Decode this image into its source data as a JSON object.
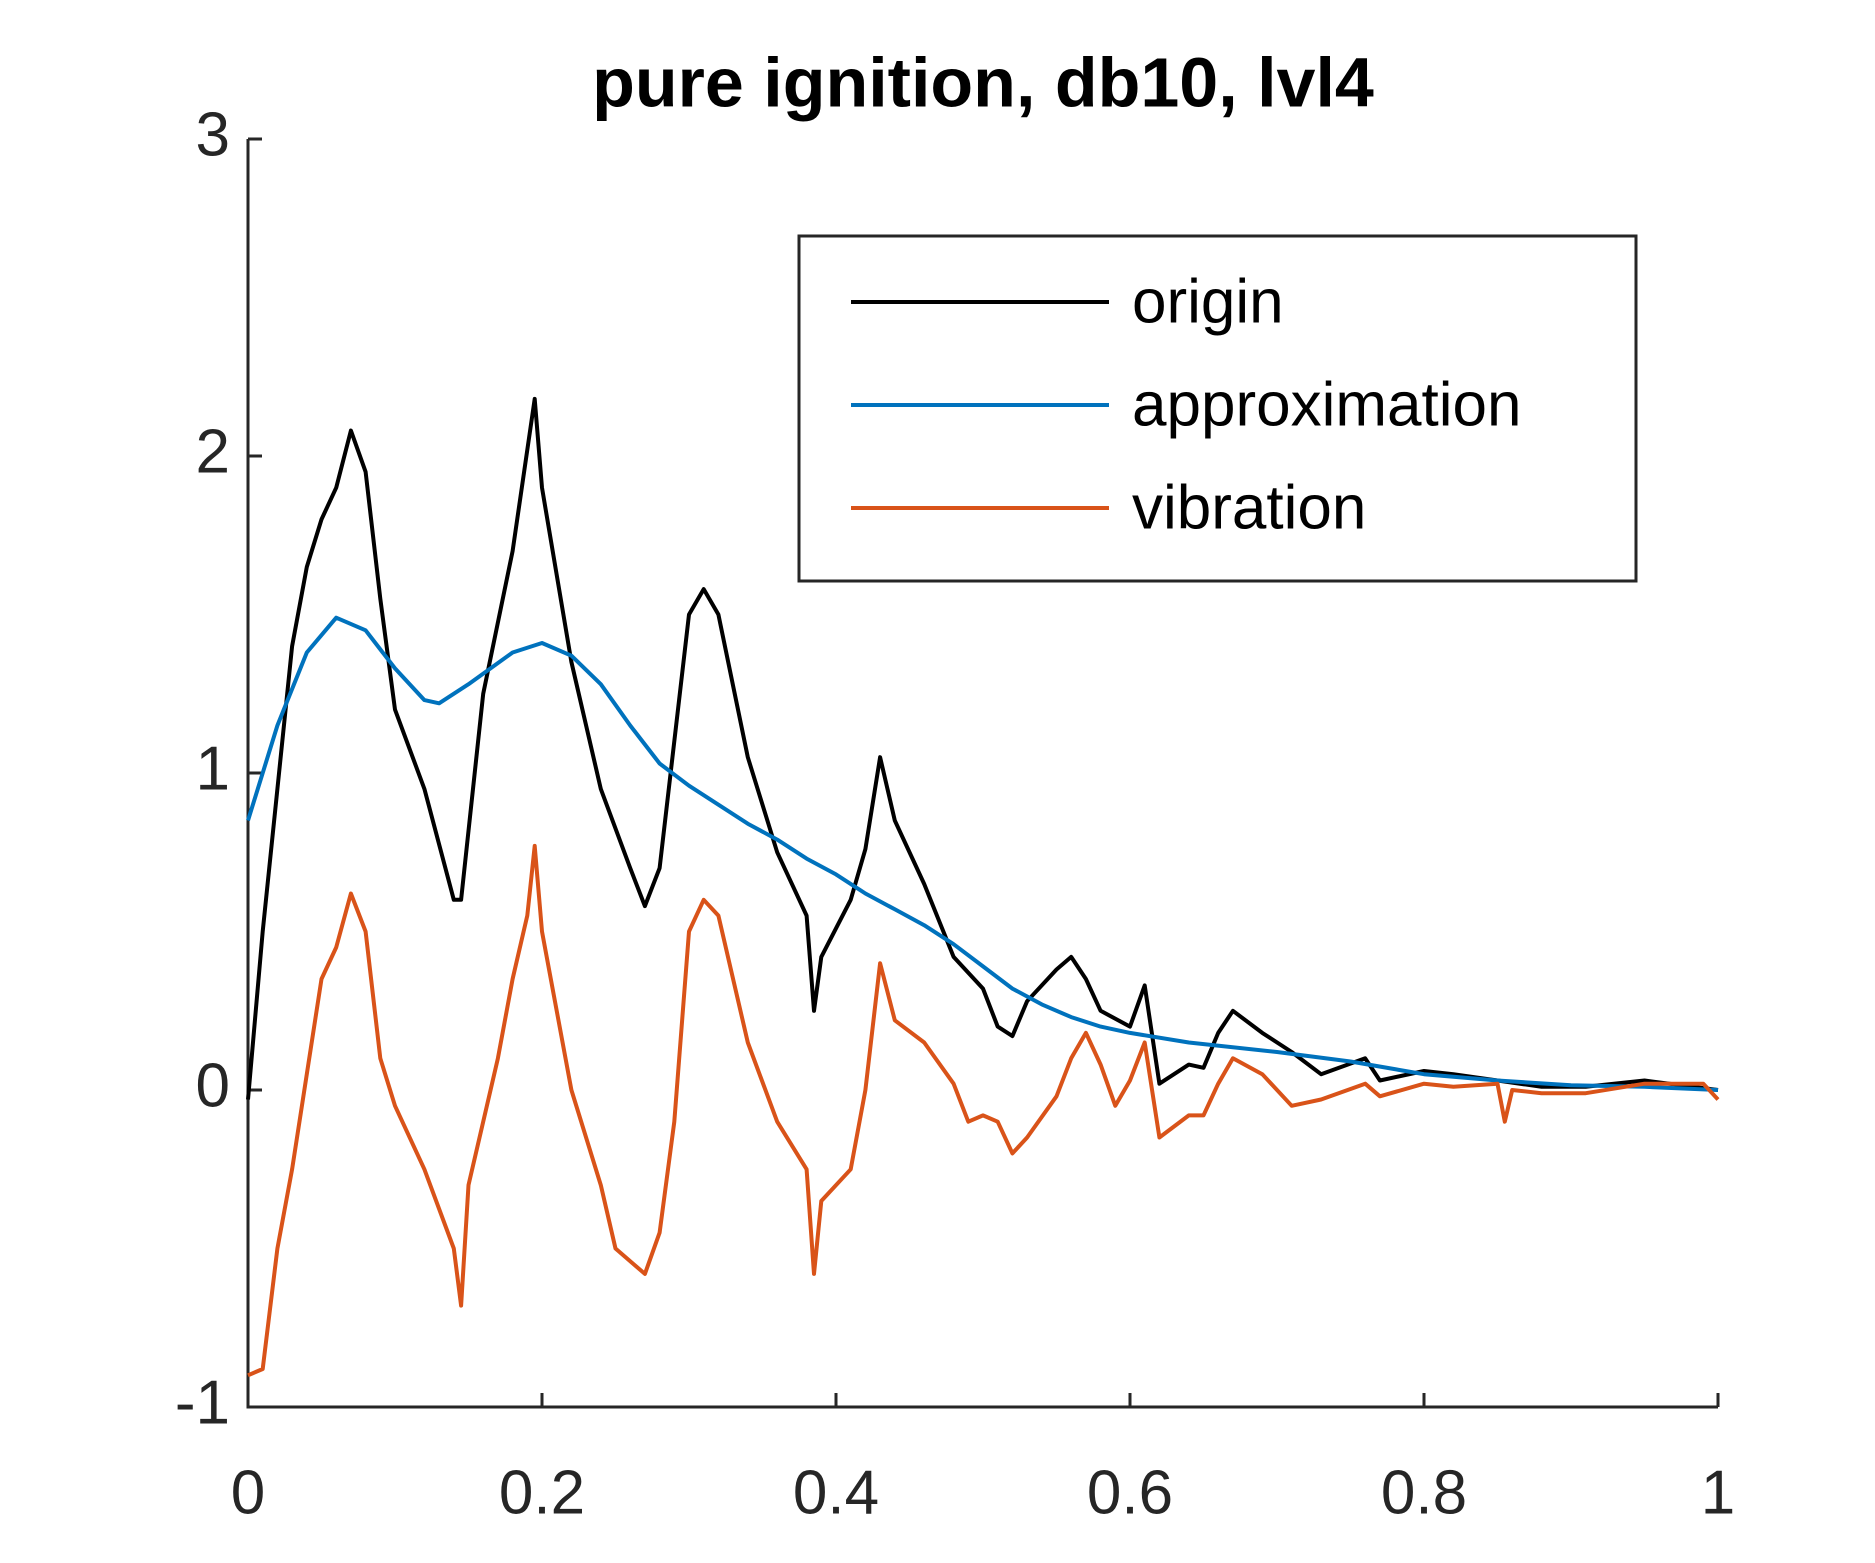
{
  "chart_data": {
    "type": "line",
    "title": "pure ignition, db10, lvl4",
    "xlim": [
      0,
      1
    ],
    "ylim": [
      -1,
      3
    ],
    "xticks": [
      0,
      0.2,
      0.4,
      0.6,
      0.8,
      1
    ],
    "yticks": [
      -1,
      0,
      1,
      2,
      3
    ],
    "legend": "upper-right",
    "series": [
      {
        "name": "origin",
        "color": "#000000",
        "x": [
          0,
          0.01,
          0.02,
          0.03,
          0.04,
          0.05,
          0.06,
          0.07,
          0.08,
          0.09,
          0.1,
          0.12,
          0.14,
          0.145,
          0.16,
          0.18,
          0.195,
          0.2,
          0.22,
          0.24,
          0.26,
          0.27,
          0.28,
          0.3,
          0.31,
          0.32,
          0.34,
          0.36,
          0.38,
          0.385,
          0.39,
          0.41,
          0.42,
          0.43,
          0.44,
          0.46,
          0.48,
          0.5,
          0.51,
          0.52,
          0.53,
          0.55,
          0.56,
          0.57,
          0.58,
          0.6,
          0.61,
          0.62,
          0.64,
          0.65,
          0.66,
          0.67,
          0.69,
          0.71,
          0.73,
          0.76,
          0.77,
          0.8,
          0.82,
          0.85,
          0.88,
          0.91,
          0.95,
          1
        ],
        "values": [
          -0.03,
          0.5,
          0.95,
          1.4,
          1.65,
          1.8,
          1.9,
          2.08,
          1.95,
          1.55,
          1.2,
          0.95,
          0.6,
          0.6,
          1.25,
          1.7,
          2.18,
          1.9,
          1.35,
          0.95,
          0.7,
          0.58,
          0.7,
          1.5,
          1.58,
          1.5,
          1.05,
          0.75,
          0.55,
          0.25,
          0.42,
          0.6,
          0.76,
          1.05,
          0.85,
          0.65,
          0.42,
          0.32,
          0.2,
          0.17,
          0.28,
          0.38,
          0.42,
          0.35,
          0.25,
          0.2,
          0.33,
          0.02,
          0.08,
          0.07,
          0.18,
          0.25,
          0.18,
          0.12,
          0.05,
          0.1,
          0.03,
          0.06,
          0.05,
          0.03,
          0.01,
          0.01,
          0.03,
          0
        ]
      },
      {
        "name": "approximation",
        "color": "#0072bd",
        "x": [
          0,
          0.02,
          0.04,
          0.06,
          0.08,
          0.1,
          0.12,
          0.13,
          0.15,
          0.18,
          0.2,
          0.22,
          0.24,
          0.26,
          0.28,
          0.3,
          0.32,
          0.34,
          0.36,
          0.38,
          0.4,
          0.42,
          0.44,
          0.46,
          0.48,
          0.5,
          0.52,
          0.54,
          0.56,
          0.58,
          0.6,
          0.64,
          0.7,
          0.75,
          0.8,
          0.85,
          0.9,
          0.95,
          1
        ],
        "values": [
          0.85,
          1.15,
          1.38,
          1.49,
          1.45,
          1.33,
          1.23,
          1.22,
          1.28,
          1.38,
          1.41,
          1.37,
          1.28,
          1.15,
          1.03,
          0.96,
          0.9,
          0.84,
          0.79,
          0.73,
          0.68,
          0.62,
          0.57,
          0.52,
          0.46,
          0.39,
          0.32,
          0.27,
          0.23,
          0.2,
          0.18,
          0.15,
          0.12,
          0.09,
          0.05,
          0.03,
          0.015,
          0.01,
          0
        ]
      },
      {
        "name": "vibration",
        "color": "#d95319",
        "x": [
          0,
          0.01,
          0.02,
          0.03,
          0.04,
          0.05,
          0.06,
          0.07,
          0.08,
          0.09,
          0.1,
          0.12,
          0.14,
          0.145,
          0.15,
          0.17,
          0.18,
          0.19,
          0.195,
          0.2,
          0.22,
          0.24,
          0.25,
          0.27,
          0.28,
          0.29,
          0.3,
          0.31,
          0.32,
          0.34,
          0.36,
          0.38,
          0.385,
          0.39,
          0.41,
          0.42,
          0.43,
          0.44,
          0.46,
          0.48,
          0.49,
          0.5,
          0.51,
          0.52,
          0.53,
          0.55,
          0.56,
          0.57,
          0.58,
          0.59,
          0.6,
          0.61,
          0.62,
          0.64,
          0.65,
          0.66,
          0.67,
          0.69,
          0.71,
          0.73,
          0.76,
          0.77,
          0.8,
          0.82,
          0.85,
          0.855,
          0.86,
          0.88,
          0.91,
          0.95,
          0.99,
          1
        ],
        "values": [
          -0.9,
          -0.88,
          -0.5,
          -0.25,
          0.05,
          0.35,
          0.45,
          0.62,
          0.5,
          0.1,
          -0.05,
          -0.25,
          -0.5,
          -0.68,
          -0.3,
          0.1,
          0.35,
          0.55,
          0.77,
          0.5,
          0,
          -0.3,
          -0.5,
          -0.58,
          -0.45,
          -0.1,
          0.5,
          0.6,
          0.55,
          0.15,
          -0.1,
          -0.25,
          -0.58,
          -0.35,
          -0.25,
          0,
          0.4,
          0.22,
          0.15,
          0.02,
          -0.1,
          -0.08,
          -0.1,
          -0.2,
          -0.15,
          -0.02,
          0.1,
          0.18,
          0.08,
          -0.05,
          0.03,
          0.15,
          -0.15,
          -0.08,
          -0.08,
          0.02,
          0.1,
          0.05,
          -0.05,
          -0.03,
          0.02,
          -0.02,
          0.02,
          0.01,
          0.02,
          -0.1,
          0,
          -0.01,
          -0.01,
          0.02,
          0.02,
          -0.03
        ]
      }
    ]
  }
}
